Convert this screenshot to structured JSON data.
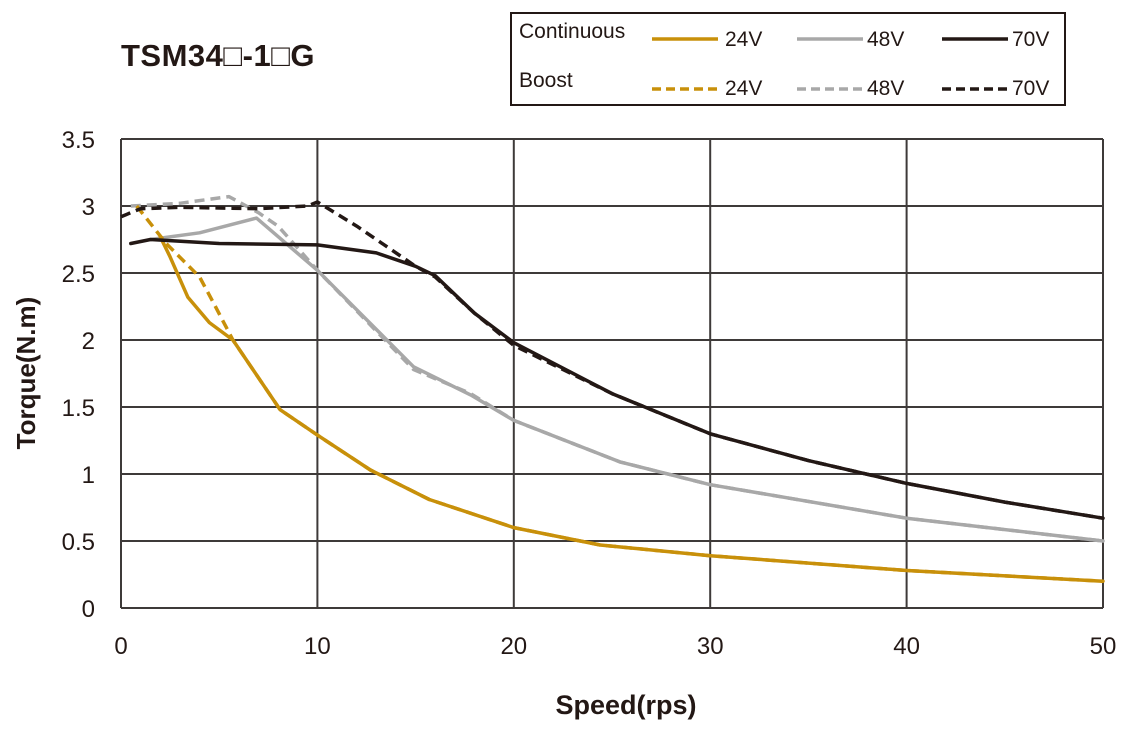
{
  "chart_data": {
    "type": "line",
    "title": "TSM34□-1□G",
    "xlabel": "Speed(rps)",
    "ylabel": "Torque(N.m)",
    "xlim": [
      0,
      50
    ],
    "ylim": [
      0,
      3.5
    ],
    "xticks": [
      "0",
      "10",
      "20",
      "30",
      "40",
      "50"
    ],
    "yticks": [
      "0",
      "0.5",
      "1",
      "1.5",
      "2",
      "2.5",
      "3",
      "3.5"
    ],
    "grid": true,
    "legend_position": "top-right",
    "legend_groups": [
      "Continuous",
      "Boost"
    ],
    "series": [
      {
        "name": "24V",
        "group": "Continuous",
        "color": "#c8900a",
        "dash": false,
        "x": [
          2,
          2.5,
          3.4,
          4.5,
          5.7,
          8.1,
          10,
          12.7,
          15.7,
          20,
          24.4,
          30,
          40,
          50
        ],
        "y": [
          2.77,
          2.62,
          2.32,
          2.13,
          2.0,
          1.48,
          1.29,
          1.03,
          0.81,
          0.6,
          0.47,
          0.39,
          0.28,
          0.2
        ]
      },
      {
        "name": "48V",
        "group": "Continuous",
        "color": "#a8a8a8",
        "dash": false,
        "x": [
          1.5,
          4,
          6.9,
          10,
          14.9,
          17.8,
          20,
          25.4,
          30,
          40,
          50
        ],
        "y": [
          2.75,
          2.8,
          2.91,
          2.52,
          1.8,
          1.59,
          1.4,
          1.09,
          0.92,
          0.67,
          0.5
        ]
      },
      {
        "name": "70V",
        "group": "Continuous",
        "color": "#231815",
        "dash": false,
        "x": [
          0.5,
          1.5,
          5,
          10,
          13,
          15,
          16,
          18,
          20,
          25,
          30,
          35,
          40,
          45,
          50
        ],
        "y": [
          2.72,
          2.75,
          2.72,
          2.71,
          2.65,
          2.55,
          2.48,
          2.2,
          1.98,
          1.6,
          1.3,
          1.1,
          0.93,
          0.79,
          0.67
        ]
      },
      {
        "name": "24V",
        "group": "Boost",
        "color": "#c8900a",
        "dash": true,
        "x": [
          0.8,
          2.3,
          4.0,
          4.7,
          5.7,
          8.1,
          10,
          12.7,
          15.7,
          20,
          24.4,
          30,
          40,
          50
        ],
        "y": [
          3.0,
          2.72,
          2.47,
          2.28,
          2.0,
          1.48,
          1.29,
          1.03,
          0.81,
          0.6,
          0.47,
          0.39,
          0.28,
          0.2
        ]
      },
      {
        "name": "48V",
        "group": "Boost",
        "color": "#a8a8a8",
        "dash": true,
        "x": [
          0.5,
          3,
          5.5,
          7,
          8,
          10,
          14.9,
          17.8,
          20,
          25.4,
          30,
          40,
          50
        ],
        "y": [
          3.0,
          3.02,
          3.07,
          2.95,
          2.85,
          2.52,
          1.78,
          1.6,
          1.4,
          1.09,
          0.92,
          0.67,
          0.5
        ]
      },
      {
        "name": "70V",
        "group": "Boost",
        "color": "#231815",
        "dash": true,
        "x": [
          0,
          1,
          3,
          7,
          9.5,
          10,
          12,
          15,
          16,
          18,
          20,
          25,
          30,
          35,
          40,
          45,
          50
        ],
        "y": [
          2.92,
          2.98,
          2.99,
          2.98,
          3.0,
          3.03,
          2.85,
          2.55,
          2.47,
          2.2,
          1.96,
          1.6,
          1.3,
          1.1,
          0.93,
          0.79,
          0.67
        ]
      }
    ]
  }
}
